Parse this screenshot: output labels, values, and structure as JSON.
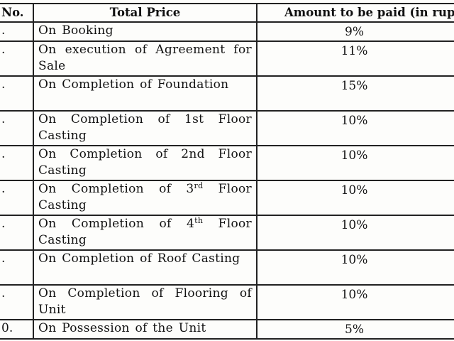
{
  "table": {
    "header": [
      "No.",
      "Total Price",
      "Amount to be paid (in rupe"
    ],
    "rows": [
      {
        "no": ".",
        "description": "On Booking",
        "amount": "9%"
      },
      {
        "no": ".",
        "description": "On execution of Agreement for Sale",
        "amount": "11%"
      },
      {
        "no": ".",
        "description": "On Completion of Foundation",
        "amount": "15%"
      },
      {
        "no": ".",
        "description": "On Completion of 1st Floor Casting",
        "amount": "10%"
      },
      {
        "no": ".",
        "description": "On Completion of 2nd Floor Casting",
        "amount": "10%"
      },
      {
        "no": ".",
        "description": "On Completion of 3",
        "superscript": "rd",
        "description_end": "Floor Casting",
        "amount": "10%"
      },
      {
        "no": ".",
        "description": "On Completion of 4",
        "superscript": "th",
        "description_end": "Floor Casting",
        "amount": "10%"
      },
      {
        "no": ".",
        "description": "On Completion of Roof Casting",
        "amount": "10%"
      },
      {
        "no": ".",
        "description": "On Completion of Flooring of Unit",
        "amount": "10%"
      },
      {
        "no": "0.",
        "description": "On Possession of the Unit",
        "amount": "5%"
      }
    ]
  }
}
